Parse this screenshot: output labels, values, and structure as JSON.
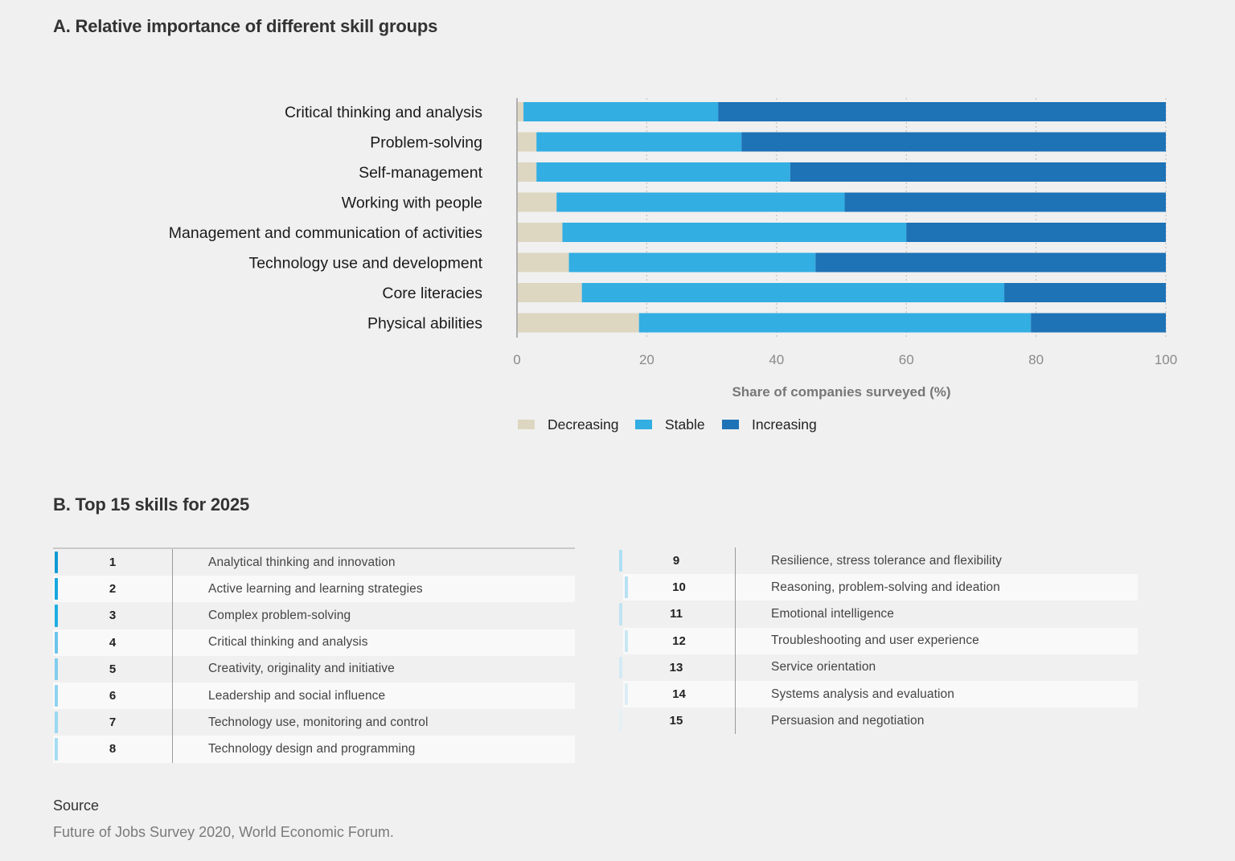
{
  "section_a": {
    "title": "A. Relative importance of different skill groups"
  },
  "section_b": {
    "title": "B. Top 15 skills for 2025"
  },
  "colors": {
    "decreasing": "#ddd6c1",
    "stable": "#32aee2",
    "increasing": "#1e72b6",
    "grid": "#bbbbbb",
    "axis": "#b0b0b0"
  },
  "chart_data": {
    "type": "bar",
    "orientation": "horizontal",
    "stacked": true,
    "title": "A. Relative importance of different skill groups",
    "xlabel": "Share of companies surveyed (%)",
    "ylabel": "",
    "xlim": [
      0,
      100
    ],
    "xticks": [
      0,
      20,
      40,
      60,
      80,
      100
    ],
    "grid": true,
    "legend_position": "bottom-left",
    "categories": [
      "Critical thinking and analysis",
      "Problem-solving",
      "Self-management",
      "Working with people",
      "Management and communication of activities",
      "Technology use and development",
      "Core literacies",
      "Physical abilities"
    ],
    "series": [
      {
        "name": "Decreasing",
        "values": [
          1.0,
          3.0,
          3.0,
          6.1,
          7.0,
          8.0,
          10.0,
          18.8
        ]
      },
      {
        "name": "Stable",
        "values": [
          30.0,
          31.6,
          39.1,
          44.4,
          53.0,
          38.0,
          65.1,
          60.4
        ]
      },
      {
        "name": "Increasing",
        "values": [
          69.0,
          65.4,
          57.9,
          49.5,
          40.0,
          54.0,
          24.9,
          20.8
        ]
      }
    ]
  },
  "top_skills": {
    "left": [
      {
        "rank": "1",
        "name": "Analytical thinking and innovation",
        "accent": "#0f9ad3"
      },
      {
        "rank": "2",
        "name": "Active learning and learning strategies",
        "accent": "#18a6dd"
      },
      {
        "rank": "3",
        "name": "Complex problem-solving",
        "accent": "#1eaee2"
      },
      {
        "rank": "4",
        "name": "Critical thinking and analysis",
        "accent": "#6cc4ea"
      },
      {
        "rank": "5",
        "name": "Creativity, originality and initiative",
        "accent": "#80cdee"
      },
      {
        "rank": "6",
        "name": "Leadership and social influence",
        "accent": "#8ed3f0"
      },
      {
        "rank": "7",
        "name": "Technology use, monitoring and control",
        "accent": "#9ad8f1"
      },
      {
        "rank": "8",
        "name": "Technology design and programming",
        "accent": "#a5dcf2"
      }
    ],
    "right": [
      {
        "rank": "9",
        "name": "Resilience, stress tolerance and flexibility",
        "accent": "#aedff2"
      },
      {
        "rank": "10",
        "name": "Reasoning, problem-solving and ideation",
        "accent": "#b6e1f2"
      },
      {
        "rank": "11",
        "name": "Emotional intelligence",
        "accent": "#c0e4f3"
      },
      {
        "rank": "12",
        "name": "Troubleshooting and user experience",
        "accent": "#c9e7f3"
      },
      {
        "rank": "13",
        "name": "Service orientation",
        "accent": "#d3eaf4"
      },
      {
        "rank": "14",
        "name": "Systems analysis and evaluation",
        "accent": "#ddedf4"
      },
      {
        "rank": "15",
        "name": "Persuasion and negotiation",
        "accent": "#e6f0f5"
      }
    ]
  },
  "source": {
    "label": "Source",
    "text": "Future of Jobs Survey 2020, World Economic Forum."
  }
}
